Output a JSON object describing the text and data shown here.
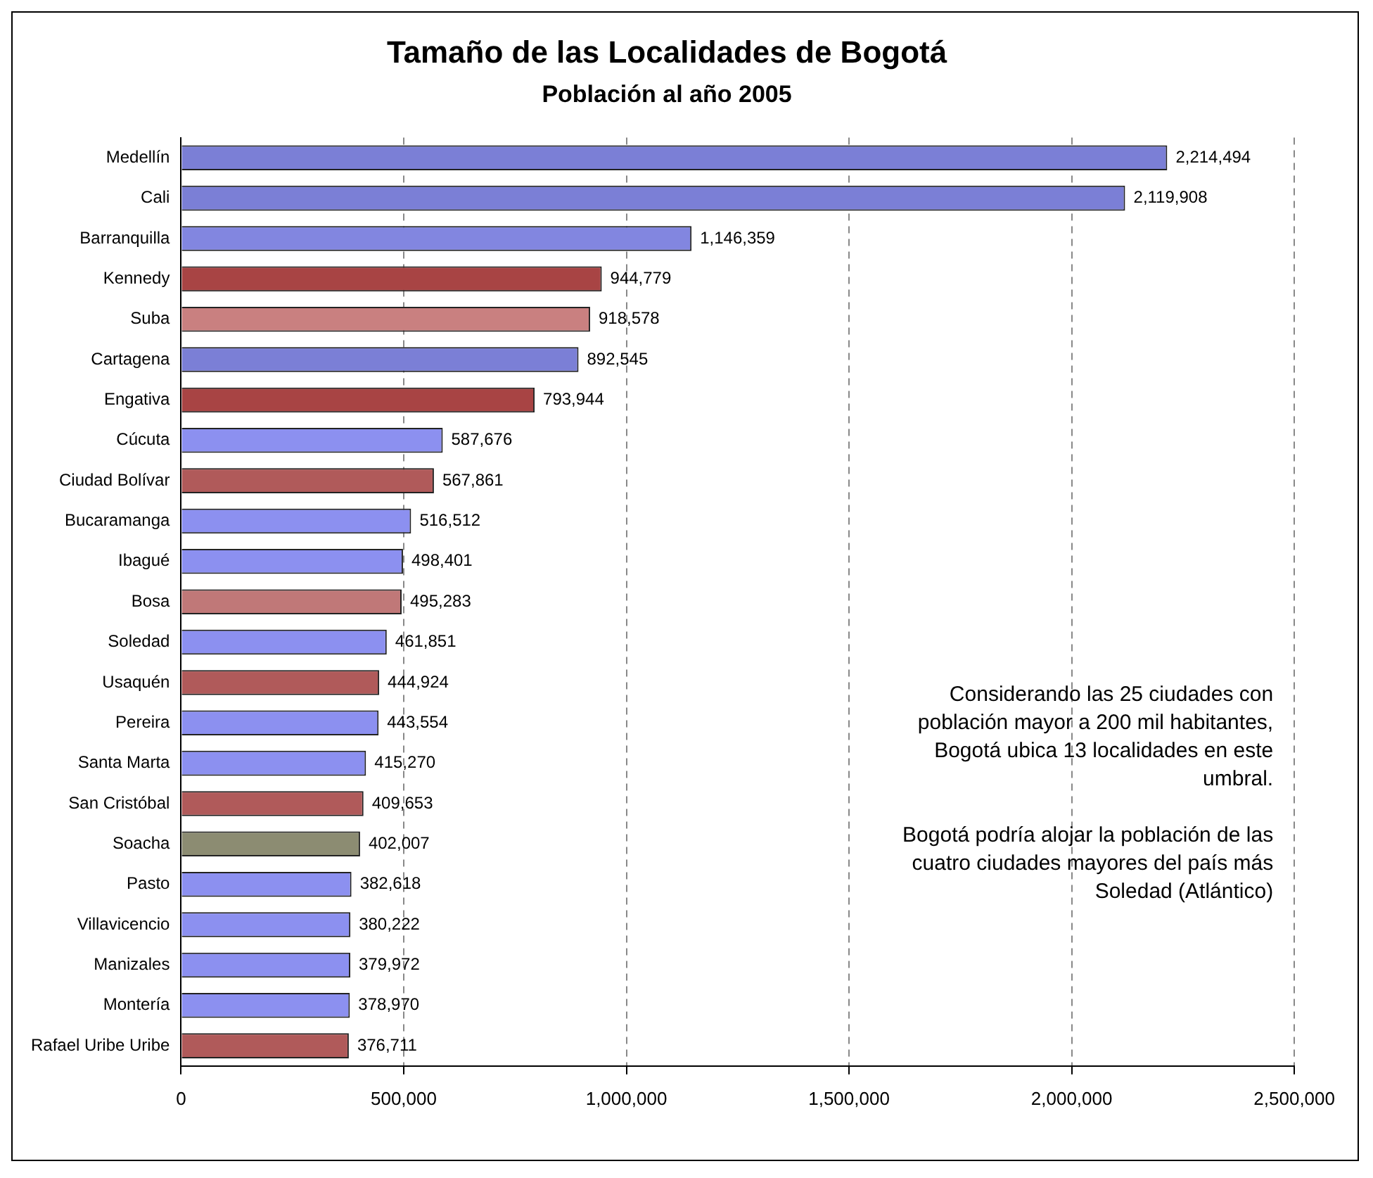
{
  "chart_data": {
    "type": "bar",
    "orientation": "horizontal",
    "title": "Tamaño de las Localidades de Bogotá",
    "subtitle": "Población al año 2005",
    "categories": [
      "Medellín",
      "Cali",
      "Barranquilla",
      "Kennedy",
      "Suba",
      "Cartagena",
      "Engativa",
      "Cúcuta",
      "Ciudad Bolívar",
      "Bucaramanga",
      "Ibagué",
      "Bosa",
      "Soledad",
      "Usaquén",
      "Pereira",
      "Santa Marta",
      "San Cristóbal",
      "Soacha",
      "Pasto",
      "Villavicencio",
      "Manizales",
      "Montería",
      "Rafael Uribe Uribe"
    ],
    "values": [
      2214494,
      2119908,
      1146359,
      944779,
      918578,
      892545,
      793944,
      587676,
      567861,
      516512,
      498401,
      495283,
      461851,
      444924,
      443554,
      415270,
      409653,
      402007,
      382618,
      380222,
      379972,
      378970,
      376711
    ],
    "colors": [
      "#7b7fd6",
      "#7b7fd6",
      "#8286e0",
      "#a84444",
      "#c98080",
      "#7b7fd6",
      "#a84444",
      "#8c90f0",
      "#b05a5a",
      "#8c90f0",
      "#8c90f0",
      "#c07878",
      "#8c90f0",
      "#b05a5a",
      "#8c90f0",
      "#8c90f0",
      "#b05a5a",
      "#8c8c72",
      "#8c90f0",
      "#8c90f0",
      "#8c90f0",
      "#8c90f0",
      "#b05a5a"
    ],
    "value_labels": [
      "2,214,494",
      "2,119,908",
      "1,146,359",
      "944,779",
      "918,578",
      "892,545",
      "793,944",
      "587,676",
      "567,861",
      "516,512",
      "498,401",
      "495,283",
      "461,851",
      "444,924",
      "443,554",
      "415,270",
      "409,653",
      "402,007",
      "382,618",
      "380,222",
      "379,972",
      "378,970",
      "376,711"
    ],
    "xlim": [
      0,
      2500000
    ],
    "xticks": [
      0,
      {
        "value": 500000,
        "label": "500,000"
      },
      {
        "value": 1000000,
        "label": "1,000,000"
      },
      {
        "value": 1500000,
        "label": "1,500,000"
      },
      {
        "value": 2000000,
        "label": "2,000,000"
      },
      {
        "value": 2500000,
        "label": "2,500,000"
      }
    ],
    "grid": "x",
    "legend": false,
    "annotations": [
      "Considerando las 25 ciudades con población mayor a 200 mil habitantes, Bogotá ubica 13 localidades en este umbral.",
      "Bogotá podría alojar la población de las cuatro ciudades mayores del país más Soledad (Atlántico)"
    ]
  }
}
